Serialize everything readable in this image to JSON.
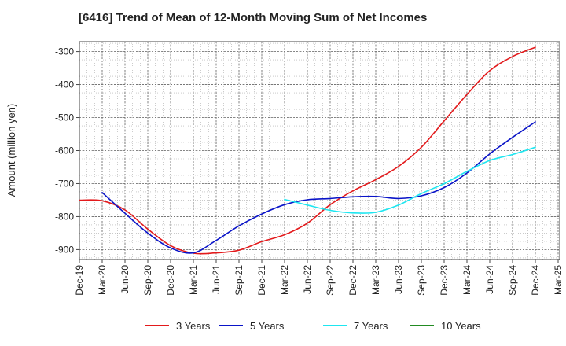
{
  "chart_data": {
    "type": "line",
    "title": "[6416]  Trend of Mean of 12-Month Moving Sum of Net Incomes",
    "xlabel": "",
    "ylabel": "Amount (million yen)",
    "ylim": [
      -930,
      -270
    ],
    "yticks": [
      -300,
      -400,
      -500,
      -600,
      -700,
      -800,
      -900
    ],
    "x_ticks": [
      "Dec-19",
      "Mar-20",
      "Jun-20",
      "Sep-20",
      "Dec-20",
      "Mar-21",
      "Jun-21",
      "Sep-21",
      "Dec-21",
      "Mar-22",
      "Jun-22",
      "Sep-22",
      "Dec-22",
      "Mar-23",
      "Jun-23",
      "Sep-23",
      "Dec-23",
      "Mar-24",
      "Jun-24",
      "Sep-24",
      "Dec-24",
      "Mar-25"
    ],
    "grid": true,
    "legend_position": "bottom",
    "series": [
      {
        "name": "3 Years",
        "color": "#e31a1c",
        "points": [
          [
            "Dec-19",
            -750
          ],
          [
            "Mar-20",
            -752
          ],
          [
            "Jun-20",
            -780
          ],
          [
            "Sep-20",
            -838
          ],
          [
            "Dec-20",
            -888
          ],
          [
            "Mar-21",
            -911
          ],
          [
            "Jun-21",
            -910
          ],
          [
            "Sep-21",
            -902
          ],
          [
            "Dec-21",
            -876
          ],
          [
            "Mar-22",
            -855
          ],
          [
            "Jun-22",
            -820
          ],
          [
            "Sep-22",
            -764
          ],
          [
            "Dec-22",
            -722
          ],
          [
            "Mar-23",
            -688
          ],
          [
            "Jun-23",
            -648
          ],
          [
            "Sep-23",
            -590
          ],
          [
            "Dec-23",
            -510
          ],
          [
            "Mar-24",
            -430
          ],
          [
            "Jun-24",
            -358
          ],
          [
            "Sep-24",
            -315
          ],
          [
            "Dec-24",
            -287
          ]
        ]
      },
      {
        "name": "5 Years",
        "color": "#0a14c8",
        "points": [
          [
            "Mar-20",
            -727
          ],
          [
            "Jun-20",
            -790
          ],
          [
            "Sep-20",
            -850
          ],
          [
            "Dec-20",
            -895
          ],
          [
            "Mar-21",
            -910
          ],
          [
            "Jun-21",
            -872
          ],
          [
            "Sep-21",
            -828
          ],
          [
            "Dec-21",
            -792
          ],
          [
            "Mar-22",
            -764
          ],
          [
            "Jun-22",
            -749
          ],
          [
            "Sep-22",
            -745
          ],
          [
            "Dec-22",
            -740
          ],
          [
            "Mar-23",
            -739
          ],
          [
            "Jun-23",
            -745
          ],
          [
            "Sep-23",
            -737
          ],
          [
            "Dec-23",
            -712
          ],
          [
            "Mar-24",
            -668
          ],
          [
            "Jun-24",
            -610
          ],
          [
            "Sep-24",
            -560
          ],
          [
            "Dec-24",
            -513
          ]
        ]
      },
      {
        "name": "7 Years",
        "color": "#1ee6f0",
        "points": [
          [
            "Mar-22",
            -748
          ],
          [
            "Jun-22",
            -765
          ],
          [
            "Sep-22",
            -781
          ],
          [
            "Dec-22",
            -789
          ],
          [
            "Mar-23",
            -787
          ],
          [
            "Jun-23",
            -765
          ],
          [
            "Sep-23",
            -730
          ],
          [
            "Dec-23",
            -700
          ],
          [
            "Mar-24",
            -663
          ],
          [
            "Jun-24",
            -630
          ],
          [
            "Sep-24",
            -612
          ],
          [
            "Dec-24",
            -590
          ]
        ]
      },
      {
        "name": "10 Years",
        "color": "#228b22",
        "points": []
      }
    ]
  }
}
